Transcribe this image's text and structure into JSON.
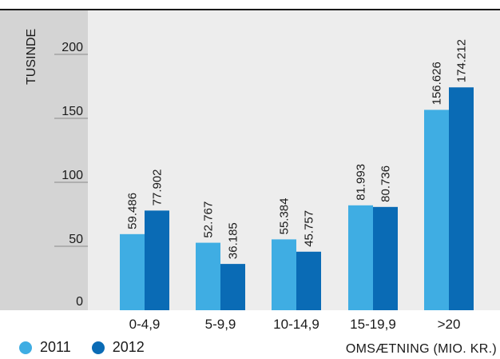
{
  "chart_data": {
    "type": "bar",
    "categories": [
      "0-4,9",
      "5-9,9",
      "10-14,9",
      "15-19,9",
      ">20"
    ],
    "series": [
      {
        "name": "2011",
        "values": [
          59.486,
          52.767,
          55.384,
          81.993,
          156.626
        ],
        "labels": [
          "59.486",
          "52.767",
          "55.384",
          "81.993",
          "156.626"
        ]
      },
      {
        "name": "2012",
        "values": [
          77.902,
          36.185,
          45.757,
          80.736,
          174.212
        ],
        "labels": [
          "77.902",
          "36.185",
          "45.757",
          "80.736",
          "174.212"
        ]
      }
    ],
    "ylabel": "TUSINDE",
    "xlabel": "OMSÆTNING (MIO. KR.)",
    "yticks": [
      0,
      50,
      100,
      150,
      200
    ],
    "ytick_labels": [
      "0",
      "50",
      "100",
      "150",
      "200"
    ],
    "ylim": [
      0,
      232
    ],
    "grid": false,
    "legend_position": "bottom-left"
  },
  "colors": {
    "series_2011": "#3fade3",
    "series_2012": "#0a6bb5",
    "axis_panel": "#d4d4d4",
    "plot_background": "#ededed",
    "top_rule": "#1a1a1a"
  }
}
